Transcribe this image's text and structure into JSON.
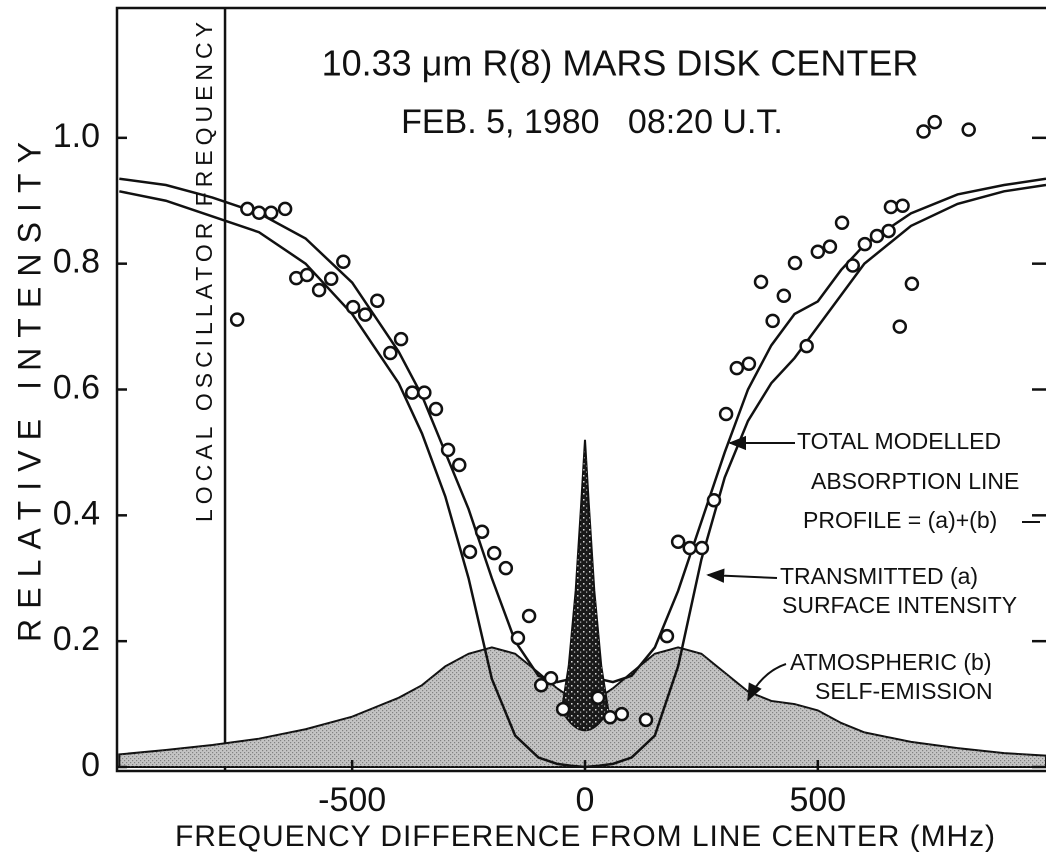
{
  "chart_data": {
    "type": "scatter",
    "title": "10.33 μm R(8) MARS DISK CENTER",
    "subtitle": "FEB. 5, 1980   08:20 U.T.",
    "x_label": "FREQUENCY DIFFERENCE FROM LINE CENTER (MHz)",
    "y_label": "RELATIVE INTENSITY",
    "reference_line_label": "LOCAL OSCILLATOR FREQUENCY",
    "reference_line_x": -773,
    "annotations": [
      "TOTAL MODELLED",
      "ABSORPTION LINE",
      "PROFILE = (a)+(b)",
      "TRANSMITTED (a)",
      "SURFACE INTENSITY",
      "ATMOSPHERIC (b)",
      "SELF-EMISSION"
    ],
    "xlim": [
      -1005,
      990
    ],
    "ylim": [
      0,
      1.2
    ],
    "xticks": [
      -500,
      0,
      500
    ],
    "yticks": [
      0,
      0.2,
      0.4,
      0.6,
      0.8,
      {
        "value": 1,
        "label": "1.0"
      }
    ],
    "series": [
      {
        "type": "area",
        "color": "#c4c4c4",
        "x": [
          -1000,
          -900,
          -800,
          -700,
          -600,
          -500,
          -400,
          -350,
          -300,
          -250,
          -200,
          -150,
          -100,
          -60,
          -30,
          0,
          30,
          60,
          100,
          150,
          200,
          250,
          300,
          350,
          400,
          450,
          500,
          550,
          600,
          700,
          800,
          900,
          990
        ],
        "values": [
          0.02,
          0.027,
          0.035,
          0.045,
          0.06,
          0.08,
          0.11,
          0.13,
          0.16,
          0.18,
          0.19,
          0.18,
          0.15,
          0.125,
          0.11,
          0.1,
          0.11,
          0.125,
          0.15,
          0.18,
          0.19,
          0.18,
          0.15,
          0.12,
          0.105,
          0.1,
          0.09,
          0.07,
          0.055,
          0.04,
          0.03,
          0.022,
          0.018
        ]
      },
      {
        "type": "line",
        "color": "#111111",
        "x": [
          -1000,
          -900,
          -800,
          -700,
          -600,
          -500,
          -400,
          -350,
          -300,
          -250,
          -200,
          -150,
          -100,
          -60,
          -30,
          0,
          30,
          60,
          100,
          150,
          200,
          250,
          300,
          350,
          400,
          450,
          500,
          550,
          600,
          700,
          800,
          900,
          990
        ],
        "values": [
          0.915,
          0.9,
          0.875,
          0.85,
          0.8,
          0.72,
          0.61,
          0.53,
          0.43,
          0.3,
          0.14,
          0.05,
          0.015,
          0.005,
          0.002,
          0.0,
          0.002,
          0.005,
          0.015,
          0.05,
          0.16,
          0.33,
          0.46,
          0.55,
          0.61,
          0.65,
          0.7,
          0.75,
          0.8,
          0.86,
          0.895,
          0.915,
          0.925
        ]
      },
      {
        "type": "line",
        "color": "#111111",
        "x": [
          -1000,
          -900,
          -800,
          -700,
          -600,
          -500,
          -400,
          -350,
          -300,
          -250,
          -200,
          -150,
          -100,
          -60,
          -30,
          0,
          30,
          60,
          100,
          150,
          200,
          250,
          300,
          350,
          400,
          450,
          500,
          550,
          600,
          700,
          800,
          900,
          990
        ],
        "values": [
          0.935,
          0.925,
          0.905,
          0.88,
          0.84,
          0.77,
          0.66,
          0.59,
          0.5,
          0.41,
          0.3,
          0.2,
          0.145,
          0.135,
          0.14,
          null,
          0.14,
          0.135,
          0.145,
          0.19,
          0.28,
          0.39,
          0.5,
          0.6,
          0.67,
          0.72,
          0.74,
          0.79,
          0.83,
          0.88,
          0.91,
          0.925,
          0.935
        ]
      },
      {
        "type": "spike",
        "color": "#1a1a1a",
        "x": [
          -50,
          -35,
          -20,
          -8,
          0,
          8,
          20,
          35,
          50
        ],
        "values": [
          0.09,
          0.16,
          0.28,
          0.42,
          0.52,
          0.42,
          0.28,
          0.16,
          0.09
        ]
      },
      {
        "type": "scatter",
        "color": "#111111",
        "x": [
          -747,
          -725,
          -700,
          -674,
          -644,
          -620,
          -597,
          -571,
          -545,
          -519,
          -498,
          -472,
          -446,
          -418,
          -395,
          -371,
          -345,
          -320,
          -294,
          -270,
          -247,
          -221,
          -195,
          -170,
          -144,
          -120,
          -94,
          -73,
          -47,
          28,
          54,
          79,
          131,
          176,
          200,
          225,
          251,
          277,
          303,
          326,
          352,
          378,
          403,
          427,
          451,
          476,
          500,
          526,
          552,
          575,
          601,
          627,
          652,
          657,
          682,
          676,
          702,
          727,
          751,
          824
        ],
        "values": [
          0.711,
          0.887,
          0.881,
          0.881,
          0.887,
          0.777,
          0.782,
          0.758,
          0.776,
          0.803,
          0.731,
          0.719,
          0.741,
          0.658,
          0.68,
          0.595,
          0.595,
          0.569,
          0.504,
          0.48,
          0.342,
          0.374,
          0.34,
          0.316,
          0.205,
          0.24,
          0.13,
          0.141,
          0.092,
          0.11,
          0.079,
          0.084,
          0.075,
          0.208,
          0.358,
          0.348,
          0.348,
          0.424,
          0.561,
          0.634,
          0.641,
          0.771,
          0.709,
          0.749,
          0.801,
          0.669,
          0.819,
          0.827,
          0.865,
          0.797,
          0.831,
          0.844,
          0.852,
          0.89,
          0.892,
          0.7,
          0.768,
          1.01,
          1.025,
          1.013
        ]
      }
    ]
  }
}
